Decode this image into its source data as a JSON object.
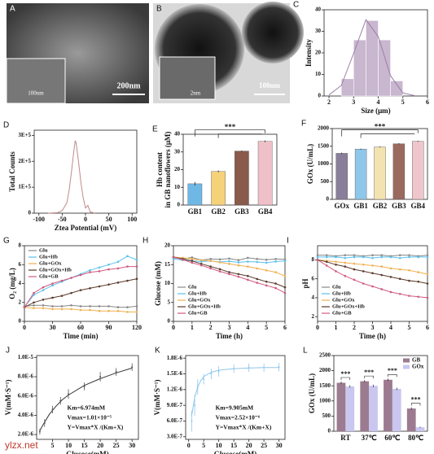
{
  "images": [
    {
      "panel": "A",
      "labels": [
        "200nm",
        "100nm"
      ]
    },
    {
      "panel": "B",
      "labels": [
        "100nm",
        "2nm"
      ]
    }
  ],
  "watermark": "ylzx.net",
  "chart_data": [
    {
      "type": "histogram",
      "panel": "C",
      "ylabel": "Intensity",
      "xlabel": "Size (μm)",
      "color": "#c9b6cf",
      "line_color": "#9a7fa6",
      "bins": [
        2.5,
        3,
        3.5,
        4,
        4.5,
        5
      ],
      "values": [
        8,
        26,
        35,
        26,
        7
      ],
      "fit": {
        "x": [
          2,
          2.5,
          3,
          3.5,
          4,
          4.5,
          5,
          5.5
        ],
        "values": [
          0.5,
          4.9,
          19.8,
          35.4,
          27.6,
          9.4,
          1.4,
          0.1
        ]
      },
      "xlim": [
        1.8,
        6
      ],
      "xticks": [
        2,
        3,
        4,
        5,
        6
      ],
      "ylim": [
        0,
        40
      ],
      "yticks": [
        0,
        10,
        20,
        30,
        40
      ]
    },
    {
      "type": "line",
      "panel": "D",
      "ylabel": "Total Counts",
      "xlabel": "Ztea Potential (mV)",
      "x": [
        -80,
        -60,
        -50,
        -40,
        -35,
        -30,
        -25,
        -22,
        -20,
        -15,
        -10,
        -5,
        0,
        5,
        10,
        20
      ],
      "series": [
        {
          "color": "#c08a8a",
          "values": [
            0,
            2000,
            10000,
            40000,
            90000,
            160000,
            240000,
            280000,
            270000,
            200000,
            120000,
            60000,
            20000,
            30000,
            5000,
            0
          ]
        }
      ],
      "xlim": [
        -110,
        110
      ],
      "xticks": [
        -100,
        -50,
        0,
        50,
        100
      ],
      "ylim": [
        0,
        320000
      ],
      "yticks": [
        0,
        {
          "value": 100000,
          "label": "1E+5"
        },
        {
          "value": 200000,
          "label": "2E+5"
        },
        {
          "value": 300000,
          "label": "3E+5"
        }
      ]
    },
    {
      "type": "bar",
      "panel": "E",
      "ylabel": [
        "Hb content",
        "in GB nanoflowers (μM)"
      ],
      "categories": [
        "GB1",
        "GB2",
        "GB3",
        "GB4"
      ],
      "values": [
        12,
        19,
        30.5,
        36
      ],
      "errors": [
        1,
        0.5,
        0.3,
        0.5
      ],
      "colors": [
        "#6fb8e6",
        "#f5d27a",
        "#8a5a4a",
        "#efc0c8"
      ],
      "annotations": [
        "***"
      ],
      "ylim": [
        0,
        40
      ],
      "yticks": [
        0,
        10,
        20,
        30,
        40
      ]
    },
    {
      "type": "bar",
      "panel": "F",
      "ylabel": "GOx (U/mL)",
      "categories": [
        "GOx",
        "GB1",
        "GB2",
        "GB3",
        "GB4"
      ],
      "values": [
        1300,
        1420,
        1480,
        1570,
        1640
      ],
      "errors": [
        20,
        15,
        15,
        15,
        15
      ],
      "colors": [
        "#8a7f9a",
        "#8fc7ea",
        "#f3e3b0",
        "#9a6a5e",
        "#efc6cc"
      ],
      "annotations": [
        "***"
      ],
      "ylim": [
        0,
        2000
      ],
      "yticks": [
        0,
        500,
        1000,
        1500,
        2000
      ]
    },
    {
      "type": "line",
      "panel": "G",
      "ylabel": "O₂ (mg/L)",
      "xlabel": "Time (min)",
      "legend": "upper left",
      "x": [
        0,
        10,
        20,
        30,
        40,
        50,
        60,
        70,
        80,
        90,
        100,
        110,
        120
      ],
      "series": [
        {
          "name": "Glu",
          "color": "#888888",
          "values": [
            1.6,
            1.7,
            1.7,
            1.6,
            1.6,
            1.7,
            1.6,
            1.6,
            1.6,
            1.6,
            1.5,
            1.5,
            1.6
          ]
        },
        {
          "name": "Glu+Hb",
          "color": "#5bc0eb",
          "values": [
            1.5,
            2.8,
            3.3,
            3.8,
            4.2,
            4.6,
            5.0,
            5.4,
            5.7,
            6.0,
            6.3,
            6.9,
            6.5
          ]
        },
        {
          "name": "Glu+GOx",
          "color": "#f0b050",
          "values": [
            1.5,
            1.4,
            1.4,
            1.3,
            1.3,
            1.3,
            1.2,
            1.2,
            1.1,
            1.1,
            1.1,
            1.0,
            1.0
          ]
        },
        {
          "name": "Glu+GOx+Hb",
          "color": "#5a3a2a",
          "values": [
            1.5,
            2.0,
            2.3,
            2.5,
            2.7,
            3.0,
            3.3,
            3.5,
            3.7,
            3.9,
            4.1,
            4.3,
            4.5
          ]
        },
        {
          "name": "Glu+GB",
          "color": "#d05a80",
          "values": [
            1.5,
            3.0,
            3.6,
            4.0,
            4.3,
            4.6,
            4.9,
            5.2,
            5.3,
            5.5,
            5.6,
            5.8,
            5.8
          ]
        }
      ],
      "xlim": [
        0,
        120
      ],
      "xticks": [
        0,
        30,
        60,
        90,
        120
      ],
      "ylim": [
        0,
        8
      ],
      "yticks": [
        0,
        2,
        4,
        6,
        8
      ]
    },
    {
      "type": "line",
      "panel": "H",
      "ylabel": "Glucose (mM)",
      "xlabel": "Time (h)",
      "legend": "lower left",
      "x": [
        0,
        0.5,
        1,
        1.5,
        2,
        2.5,
        3,
        3.5,
        4,
        4.5,
        5,
        5.5,
        6
      ],
      "series": [
        {
          "name": "Glu",
          "color": "#888888",
          "values": [
            16.8,
            16.5,
            16.9,
            16.2,
            16.5,
            16.4,
            16.6,
            16.2,
            16.8,
            16.5,
            16.3,
            16.5,
            16.4
          ]
        },
        {
          "name": "Glu+Hb",
          "color": "#5bc0eb",
          "values": [
            16.5,
            16.2,
            16.0,
            15.8,
            16.0,
            15.7,
            15.9,
            15.6,
            15.8,
            15.7,
            15.5,
            15.8,
            16.0
          ]
        },
        {
          "name": "Glu+GOx",
          "color": "#f0b050",
          "values": [
            17,
            16.8,
            16.5,
            16.2,
            16.0,
            15.6,
            15.2,
            14.8,
            14.5,
            14.0,
            13.5,
            13.0,
            12.0
          ]
        },
        {
          "name": "Glu+GOx+Hb",
          "color": "#5a3a2a",
          "values": [
            17,
            16.5,
            16.0,
            15.2,
            14.5,
            13.8,
            13.0,
            12.5,
            12.0,
            11.2,
            10.5,
            10.0,
            9.0
          ]
        },
        {
          "name": "Glu+GB",
          "color": "#d05a80",
          "values": [
            17,
            16.3,
            15.5,
            14.8,
            14.0,
            13.2,
            12.5,
            11.8,
            11.0,
            10.2,
            9.5,
            8.8,
            7.5
          ]
        }
      ],
      "xlim": [
        0,
        6
      ],
      "xticks": [
        0,
        1,
        2,
        3,
        4,
        5,
        6
      ],
      "ylim": [
        0,
        20
      ],
      "yticks": [
        0,
        5,
        10,
        15,
        20
      ]
    },
    {
      "type": "line",
      "panel": "I",
      "ylabel": "pH",
      "xlabel": "Time (h)",
      "legend": "lower left",
      "x": [
        0,
        0.5,
        1,
        1.5,
        2,
        2.5,
        3,
        3.5,
        4,
        4.5,
        5,
        5.5,
        6
      ],
      "series": [
        {
          "name": "Glu",
          "color": "#888888",
          "values": [
            8.5,
            8.5,
            8.4,
            8.5,
            8.5,
            8.4,
            8.5,
            8.5,
            8.4,
            8.5,
            8.5,
            8.4,
            8.5
          ]
        },
        {
          "name": "Glu+Hb",
          "color": "#5bc0eb",
          "values": [
            8.3,
            8.3,
            8.3,
            8.2,
            8.3,
            8.3,
            8.2,
            8.3,
            8.3,
            8.2,
            8.3,
            8.3,
            8.3
          ]
        },
        {
          "name": "Glu+GOx",
          "color": "#f0b050",
          "values": [
            8.0,
            7.9,
            7.8,
            7.7,
            7.6,
            7.5,
            7.4,
            7.3,
            7.1,
            7.0,
            6.9,
            6.7,
            6.5
          ]
        },
        {
          "name": "Glu+GOx+Hb",
          "color": "#5a3a2a",
          "values": [
            8.0,
            7.8,
            7.5,
            7.3,
            7.0,
            6.8,
            6.6,
            6.4,
            6.2,
            6.0,
            5.8,
            5.7,
            5.5
          ]
        },
        {
          "name": "Glu+GB",
          "color": "#d05a80",
          "values": [
            8.0,
            7.4,
            6.8,
            6.3,
            5.9,
            5.5,
            5.2,
            4.9,
            4.6,
            4.4,
            4.2,
            4.1,
            4.0
          ]
        }
      ],
      "xlim": [
        0,
        6
      ],
      "xticks": [
        0,
        1,
        2,
        3,
        4,
        5,
        6
      ],
      "ylim": [
        1.5,
        9.5
      ],
      "yticks": [
        2,
        4,
        6,
        8
      ]
    },
    {
      "type": "scatter",
      "panel": "J",
      "ylabel": "V(mM·S⁻¹)",
      "xlabel": "Glucose(mM)",
      "color": "#555555",
      "line_color": "#333333",
      "points": {
        "x": [
          1,
          2.5,
          5,
          7.5,
          10,
          15,
          20,
          25,
          30
        ],
        "values": [
          2.3e-06,
          3.2e-06,
          4.6e-06,
          5.5e-06,
          6.2e-06,
          7e-06,
          8e-06,
          8.5e-06,
          9e-06
        ],
        "errors": [
          3e-07,
          4e-07,
          4e-07,
          4e-07,
          5e-07,
          4e-07,
          5e-07,
          4e-07,
          4e-07
        ]
      },
      "fit": {
        "x": [
          1,
          2,
          4,
          6,
          8,
          10,
          15,
          20,
          25,
          30
        ],
        "values": [
          2.4e-06,
          3e-06,
          4.1e-06,
          4.9e-06,
          5.6e-06,
          6.1e-06,
          7.1e-06,
          7.8e-06,
          8.4e-06,
          8.9e-06
        ]
      },
      "annotations": [
        "Km=6.974mM",
        "Vmax=1.01×10⁻⁵",
        "Y=Vmax*X /(Km+X)"
      ],
      "xlim": [
        0,
        32
      ],
      "xticks": [
        5,
        10,
        15,
        20,
        25,
        30
      ],
      "ylim": [
        1.5e-06,
        1.02e-05
      ],
      "yticks": [
        {
          "value": 2e-06,
          "label": "2.0E-6"
        },
        {
          "value": 4e-06,
          "label": "4.0E-6"
        },
        {
          "value": 6e-06,
          "label": "6.0E-6"
        },
        {
          "value": 8e-06,
          "label": "8.0E-6"
        },
        {
          "value": 1e-05,
          "label": "1.0E-5"
        }
      ]
    },
    {
      "type": "scatter",
      "panel": "K",
      "ylabel": "V(mM·S⁻¹)",
      "xlabel": "Glucose(mM)",
      "color": "#8fc7ea",
      "line_color": "#8fc7ea",
      "points": {
        "x": [
          1,
          2,
          3,
          5,
          7.5,
          10,
          15,
          20,
          25,
          30
        ],
        "values": [
          6e-07,
          9e-07,
          1.25e-06,
          1.4e-06,
          1.5e-06,
          1.55e-06,
          1.6e-06,
          1.62e-06,
          1.62e-06,
          1.63e-06
        ],
        "errors": [
          2e-07,
          2e-07,
          1.5e-07,
          1e-07,
          1e-07,
          1e-07,
          8e-08,
          8e-08,
          8e-08,
          8e-08
        ]
      },
      "fit": {
        "x": [
          1,
          2,
          3,
          4,
          5,
          7.5,
          10,
          15,
          20,
          25,
          30
        ],
        "values": [
          7e-07,
          1.05e-06,
          1.25e-06,
          1.37e-06,
          1.45e-06,
          1.53e-06,
          1.57e-06,
          1.6e-06,
          1.61e-06,
          1.62e-06,
          1.62e-06
        ]
      },
      "annotations": [
        "Km=9.905mM",
        "Vmax=2.52×10⁻⁶",
        "Y=Vmax*X /(Km+X)"
      ],
      "xlim": [
        -1,
        32
      ],
      "xticks": [
        0,
        5,
        10,
        15,
        20,
        25,
        30
      ],
      "ylim": [
        2.5e-07,
        1.85e-06
      ],
      "yticks": [
        {
          "value": 3e-07,
          "label": "3.0E-7"
        },
        {
          "value": 6e-07,
          "label": "6.0E-7"
        },
        {
          "value": 9e-07,
          "label": "9.0E-7"
        },
        {
          "value": 1.2e-06,
          "label": "1.2E-6"
        },
        {
          "value": 1.5e-06,
          "label": "1.5E-6"
        },
        {
          "value": 1.8e-06,
          "label": "1.8E-6"
        }
      ]
    },
    {
      "type": "grouped-bar",
      "panel": "L",
      "ylabel": "GOx (U/mL)",
      "legend": "upper right",
      "categories": [
        "RT",
        "37℃",
        "60℃",
        "80℃"
      ],
      "series": [
        {
          "name": "GB",
          "color": "#9c7a90",
          "values": [
            1600,
            1650,
            1700,
            750
          ],
          "errors": [
            40,
            40,
            40,
            40
          ]
        },
        {
          "name": "GOx",
          "color": "#c9c6f0",
          "values": [
            1480,
            1500,
            1400,
            130
          ],
          "errors": [
            40,
            40,
            40,
            20
          ]
        }
      ],
      "annotations": [
        "***",
        "***",
        "***",
        "***"
      ],
      "ylim": [
        0,
        2500
      ],
      "yticks": [
        0,
        500,
        1000,
        1500,
        2000,
        2500
      ]
    }
  ]
}
